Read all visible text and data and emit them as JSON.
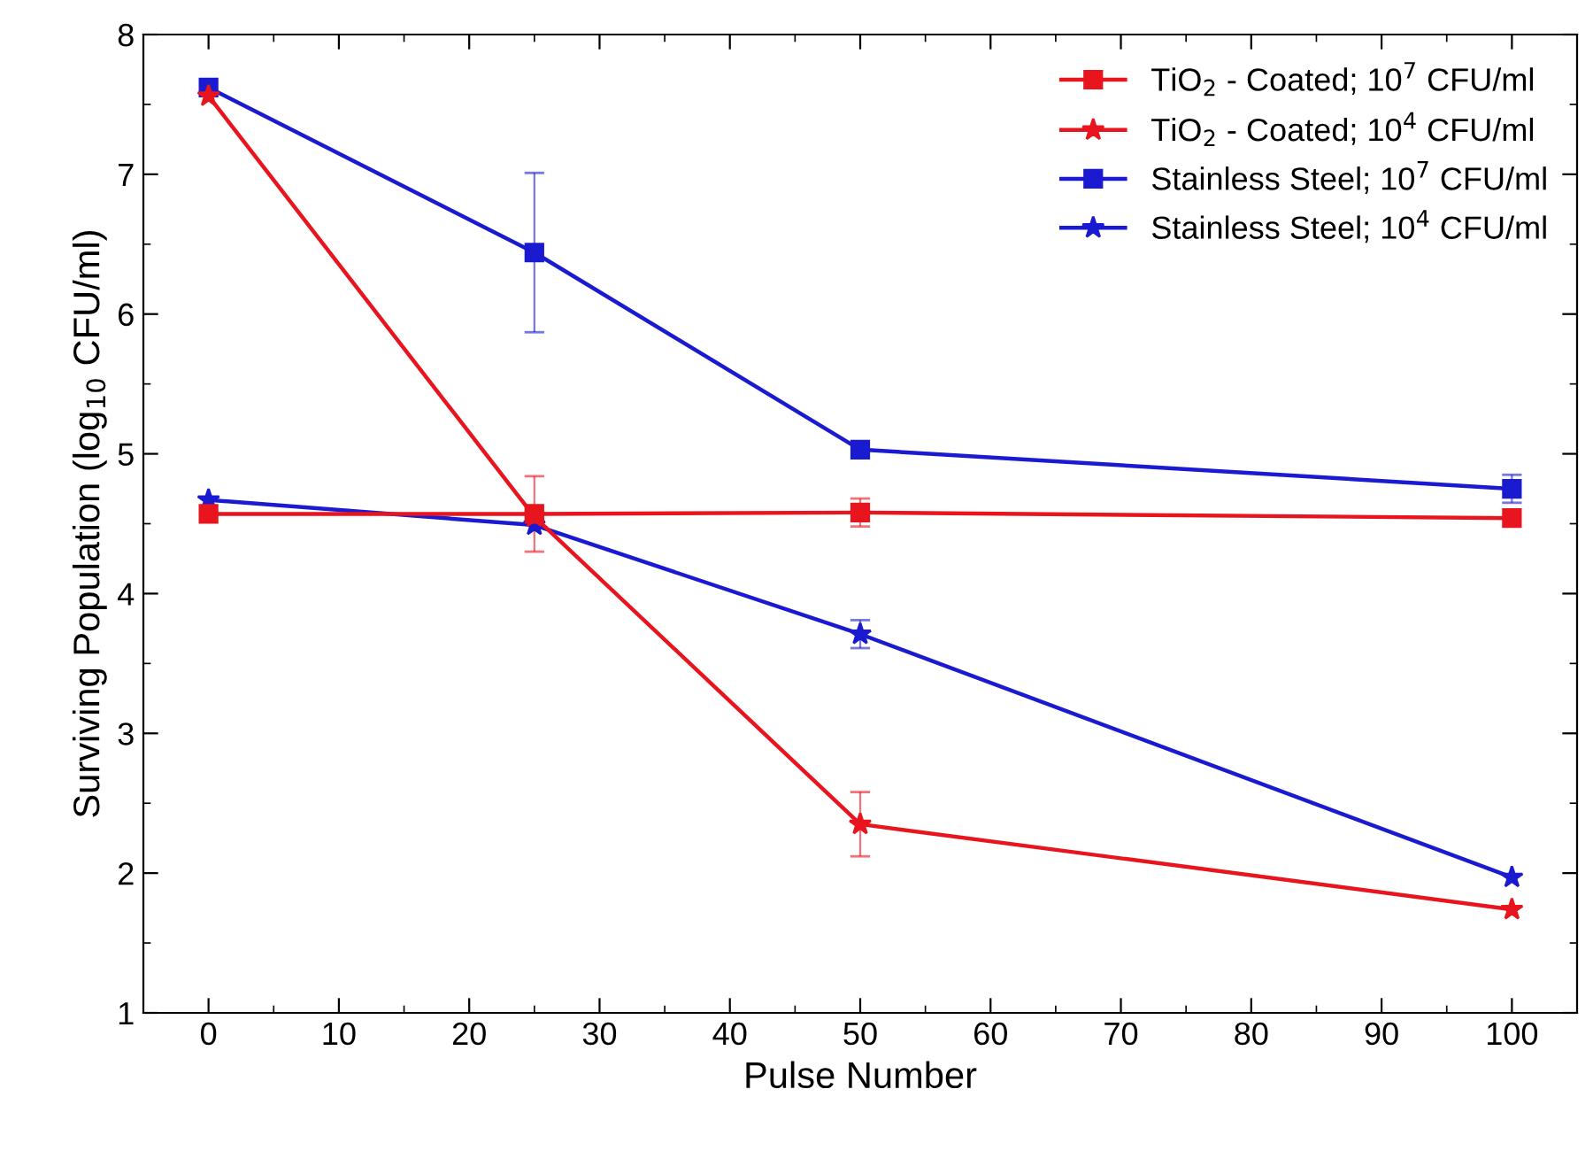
{
  "chart_data": {
    "type": "line",
    "xlabel": "Pulse Number",
    "ylabel": "Surviving Population (log$_{10}$ CFU/ml)",
    "x": [
      0,
      25,
      50,
      100
    ],
    "xlim": [
      -5,
      105
    ],
    "xticks": [
      0,
      10,
      20,
      30,
      40,
      50,
      60,
      70,
      80,
      90,
      100
    ],
    "ylim": [
      1,
      8
    ],
    "yticks": [
      1,
      2,
      3,
      4,
      5,
      6,
      7,
      8
    ],
    "grid": false,
    "legend": "top right",
    "line_style": "solid",
    "series": [
      {
        "name": "TiO$_{2}$ - Coated; 10$^{7}$ CFU/ml",
        "color": "#e8141e",
        "marker": "square",
        "values": [
          4.57,
          4.57,
          4.58,
          4.54
        ],
        "errors": [
          null,
          0.27,
          0.1,
          null
        ]
      },
      {
        "name": "TiO$_{2}$ - Coated; 10$^{4}$ CFU/ml",
        "color": "#e8141e",
        "marker": "star",
        "values": [
          7.56,
          4.55,
          2.35,
          1.74
        ],
        "errors": [
          null,
          null,
          0.23,
          null
        ]
      },
      {
        "name": "Stainless Steel; 10$^{7}$ CFU/ml",
        "color": "#1a1ad0",
        "marker": "square",
        "values": [
          7.62,
          6.44,
          5.03,
          4.75
        ],
        "errors": [
          null,
          0.57,
          null,
          0.1
        ]
      },
      {
        "name": "Stainless Steel; 10$^{4}$ CFU/ml",
        "color": "#1a1ad0",
        "marker": "star",
        "values": [
          4.67,
          4.49,
          3.71,
          1.97
        ],
        "errors": [
          null,
          null,
          0.1,
          null
        ]
      }
    ]
  }
}
